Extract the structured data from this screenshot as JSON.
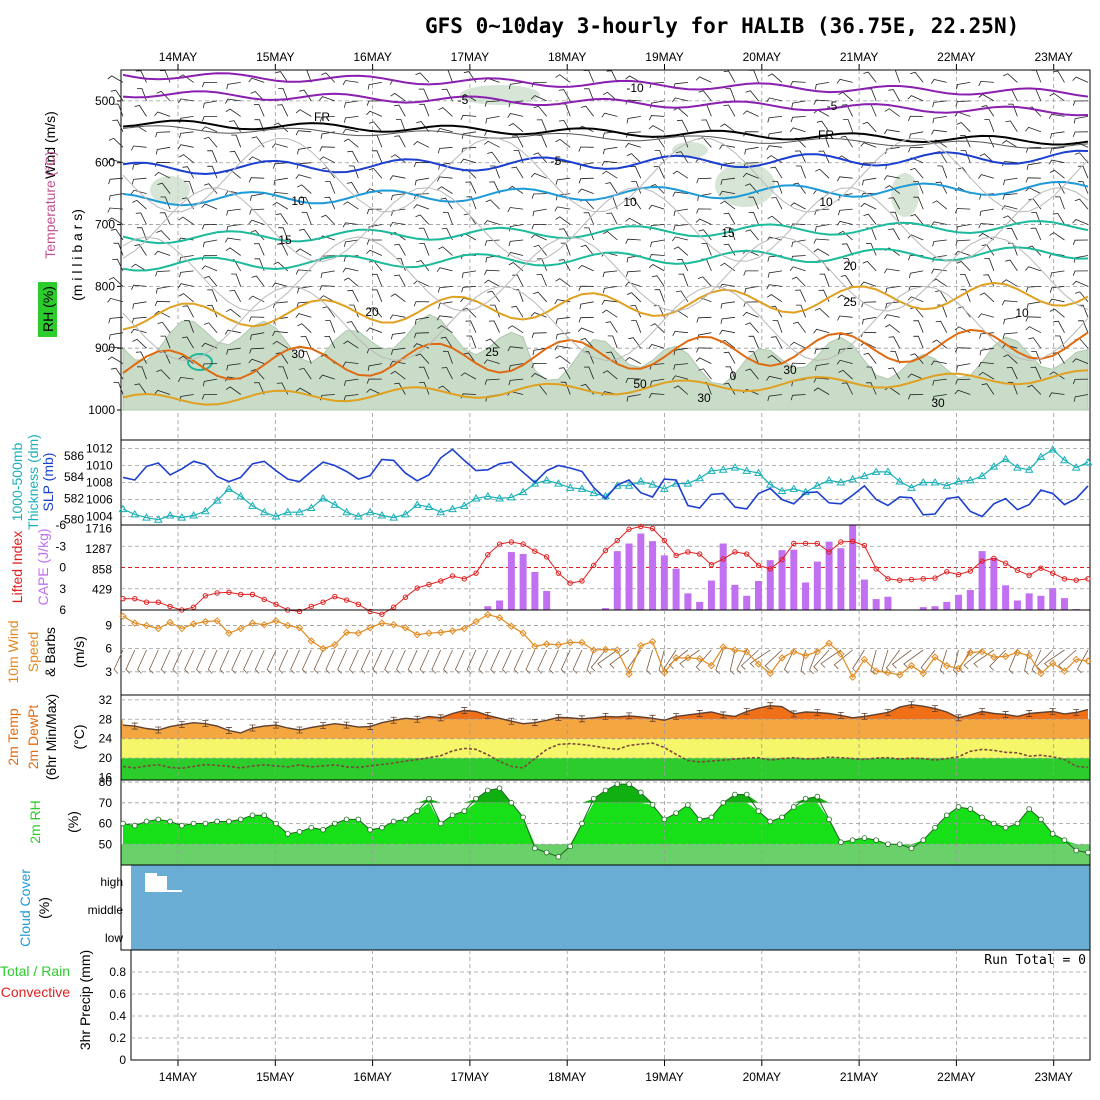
{
  "title": "GFS 0~10day 3-hourly for HALIB (36.75E, 22.25N)",
  "dates": [
    "14MAY",
    "15MAY",
    "16MAY",
    "17MAY",
    "18MAY",
    "19MAY",
    "20MAY",
    "21MAY",
    "22MAY",
    "23MAY"
  ],
  "colors": {
    "purple": "#8a1fb0",
    "blue": "#1c3fd0",
    "lightblue": "#1d9ad8",
    "teal": "#1cba9c",
    "gold": "#e0a020",
    "orange": "#e06a10",
    "rh": "#9cc4a0",
    "slp": "#1c3fd0",
    "thick": "#1ab0b8",
    "li": "#e02020",
    "cape": "#c070f0",
    "wind": "#e08a20",
    "green": "#2ccc2c",
    "cloud": "#6aaed6"
  },
  "panels": {
    "upper": {
      "ylabel_wind": "Wind (m/s)",
      "ylabel_temp": "Temperature (°C)",
      "ylabel_rh": "RH (%)",
      "ylabel_mb": "(m i l l i b a r s)",
      "yticks": [
        "500",
        "600",
        "700",
        "800",
        "900",
        "1000"
      ],
      "contour_labels": [
        "-10",
        "-5",
        "-5",
        "FR",
        "FR",
        "-5",
        "10",
        "10",
        "15",
        "15",
        "20",
        "20",
        "25",
        "25",
        "30",
        "0",
        "10",
        "30",
        "50",
        "30",
        "30",
        "10"
      ]
    },
    "slp": {
      "label_left": "1000-500mb",
      "label_left2": "Thickness (dm)",
      "label_right": "SLP (mb)",
      "left_ticks": [
        "580",
        "582",
        "584",
        "586"
      ],
      "right_ticks": [
        "1004",
        "1006",
        "1008",
        "1010",
        "1012"
      ]
    },
    "cape": {
      "label_left": "Lifted Index",
      "label_right": "CAPE (J/kg)",
      "left_ticks": [
        "-6",
        "-3",
        "0",
        "3",
        "6"
      ],
      "right_ticks": [
        "1716",
        "1287",
        "858",
        "429"
      ]
    },
    "wind10": {
      "label1": "10m Wind",
      "label2": "Speed",
      "label3": "& Barbs",
      "label4": "(m/s)",
      "ticks": [
        "9",
        "6",
        "3"
      ]
    },
    "temp2m": {
      "label1": "2m Temp",
      "label2": "2m DewPt",
      "label3": "(6hr Min/Max)",
      "label4": "(°C)",
      "ticks": [
        "32",
        "28",
        "24",
        "20",
        "16"
      ]
    },
    "rh2m": {
      "label1": "2m RH",
      "label2": "(%)",
      "ticks": [
        "80",
        "70",
        "60",
        "50"
      ]
    },
    "cloud": {
      "label1": "Cloud Cover",
      "label2": "(%)",
      "levels": [
        "high",
        "middle",
        "low"
      ]
    },
    "precip": {
      "label1": "3hr Precip (mm)",
      "label2": "Total / Rain",
      "label3": "Convective",
      "ticks": [
        "0.8",
        "0.6",
        "0.4",
        "0.2",
        "0"
      ],
      "run_total": "Run Total = 0"
    }
  },
  "chart_data": [
    {
      "type": "line",
      "panel": "SLP (mb)",
      "ylim": [
        1003,
        1013
      ],
      "x_step_hours": 3,
      "values": [
        1008.6,
        1008.3,
        1009.9,
        1010.3,
        1008.9,
        1009.6,
        1010.5,
        1010.1,
        1008.7,
        1008.1,
        1008.6,
        1010.2,
        1010.5,
        1009.4,
        1008.4,
        1008.1,
        1009.3,
        1010.4,
        1010.0,
        1009.3,
        1008.4,
        1008.8,
        1010.7,
        1010.6,
        1009.1,
        1008.2,
        1008.9,
        1010.9,
        1011.9,
        1010.6,
        1009.4,
        1009.5,
        1010.2,
        1010.4,
        1009.2,
        1008.0,
        1009.4,
        1010.0,
        1009.7,
        1009.3,
        1007.4,
        1006.1,
        1007.7,
        1008.3,
        1006.8,
        1006.3,
        1008.4,
        1008.3,
        1005.3,
        1005.0,
        1006.6,
        1006.7,
        1005.1,
        1004.9,
        1006.7,
        1007.3,
        1006.0,
        1005.5,
        1006.8,
        1006.9,
        1005.6,
        1005.5,
        1006.5,
        1007.6,
        1006.0,
        1005.3,
        1006.3,
        1006.2,
        1004.2,
        1004.3,
        1006.1,
        1006.3,
        1004.6,
        1004.0,
        1005.5,
        1006.1,
        1004.8,
        1005.4,
        1007.1,
        1006.7,
        1005.4,
        1006.1,
        1007.6
      ]
    },
    {
      "type": "line",
      "panel": "1000-500mb Thickness (dm)",
      "ylim": [
        579.5,
        587.5
      ],
      "x_step_hours": 3,
      "values": [
        581.0,
        580.5,
        580.2,
        580.0,
        580.4,
        580.2,
        580.4,
        580.8,
        581.8,
        582.9,
        582.2,
        581.3,
        580.7,
        580.3,
        580.7,
        580.7,
        581.1,
        582.0,
        581.4,
        580.7,
        580.3,
        580.7,
        580.4,
        580.2,
        580.5,
        581.4,
        581.2,
        580.7,
        581.0,
        581.3,
        582.0,
        582.2,
        582.0,
        582.1,
        582.6,
        583.4,
        583.7,
        583.4,
        583.0,
        582.9,
        582.5,
        582.2,
        583.2,
        583.2,
        583.6,
        583.3,
        582.9,
        583.4,
        583.4,
        583.9,
        584.6,
        584.7,
        584.9,
        584.6,
        584.4,
        583.3,
        582.7,
        582.9,
        582.6,
        583.2,
        583.7,
        583.5,
        583.8,
        584.1,
        584.5,
        584.5,
        583.6,
        583.0,
        583.5,
        583.5,
        583.2,
        583.6,
        583.7,
        584.1,
        585.0,
        585.7,
        584.9,
        584.7,
        585.9,
        586.6,
        585.6,
        584.9,
        585.4
      ]
    },
    {
      "type": "line",
      "panel": "Lifted Index",
      "ylim": [
        6,
        -6
      ],
      "x_step_hours": 3,
      "values": [
        4.4,
        4.4,
        4.9,
        4.9,
        5.5,
        6.0,
        5.6,
        4.0,
        3.6,
        3.5,
        3.8,
        3.8,
        4.5,
        5.2,
        6.0,
        6.2,
        5.5,
        4.9,
        4.1,
        4.6,
        5.2,
        6.2,
        6.6,
        5.6,
        4.2,
        2.9,
        2.4,
        1.9,
        1.2,
        1.6,
        0.8,
        -1.8,
        -3.3,
        -3.6,
        -3.3,
        -2.3,
        -1.5,
        0.8,
        2.2,
        1.9,
        -0.3,
        -2.4,
        -3.8,
        -5.4,
        -5.8,
        -5.5,
        -3.8,
        -1.7,
        -2.2,
        -1.9,
        -0.4,
        -1.2,
        -2.2,
        -1.9,
        -0.3,
        0.2,
        -1.1,
        -3.4,
        -3.4,
        -3.4,
        -2.2,
        -3.6,
        -3.7,
        -3.1,
        0.2,
        1.6,
        1.8,
        1.7,
        1.6,
        1.5,
        0.6,
        1.0,
        0.5,
        -0.9,
        -1.3,
        -0.6,
        0.4,
        1.1,
        0.1,
        0.8,
        1.6,
        1.8,
        1.6
      ]
    },
    {
      "type": "bar",
      "panel": "CAPE (J/kg)",
      "ylim": [
        0,
        1716
      ],
      "x_step_hours": 3,
      "values": [
        0,
        0,
        0,
        0,
        0,
        0,
        0,
        0,
        0,
        0,
        0,
        0,
        0,
        0,
        0,
        0,
        0,
        0,
        0,
        0,
        0,
        0,
        0,
        0,
        0,
        0,
        0,
        0,
        0,
        0,
        0,
        80,
        200,
        1220,
        1180,
        800,
        400,
        0,
        0,
        0,
        0,
        40,
        1240,
        1400,
        1610,
        1450,
        1150,
        870,
        350,
        170,
        620,
        1400,
        530,
        300,
        610,
        1050,
        1260,
        1270,
        580,
        1020,
        1440,
        1300,
        1780,
        640,
        230,
        280,
        0,
        0,
        60,
        80,
        170,
        320,
        420,
        1240,
        1100,
        520,
        200,
        350,
        300,
        460,
        250,
        20,
        0
      ]
    },
    {
      "type": "line",
      "panel": "10m Wind Speed (m/s)",
      "ylim": [
        0,
        11
      ],
      "x_step_hours": 3,
      "values": [
        10.2,
        9.3,
        9.0,
        8.6,
        9.4,
        8.6,
        9.2,
        9.5,
        9.6,
        8.0,
        8.6,
        9.3,
        9.1,
        9.6,
        9.0,
        8.7,
        7.0,
        6.0,
        6.5,
        8.1,
        8.0,
        8.7,
        9.3,
        9.1,
        8.7,
        7.8,
        8.0,
        8.1,
        8.3,
        8.6,
        9.5,
        10.4,
        10.0,
        8.9,
        8.0,
        6.3,
        6.6,
        6.5,
        6.8,
        6.8,
        5.8,
        5.9,
        5.8,
        2.7,
        6.4,
        6.9,
        2.9,
        4.8,
        4.8,
        4.7,
        3.8,
        6.2,
        5.8,
        5.6,
        4.0,
        2.8,
        4.8,
        5.6,
        5.1,
        5.6,
        6.7,
        5.3,
        2.3,
        4.6,
        3.1,
        2.9,
        2.6,
        3.8,
        2.8,
        4.9,
        3.8,
        3.4,
        5.5,
        5.6,
        4.9,
        5.0,
        5.5,
        5.1,
        2.8,
        4.1,
        3.1,
        4.6,
        4.4
      ]
    },
    {
      "type": "line",
      "panel": "2m Temp (°C)",
      "ylim": [
        15.5,
        33
      ],
      "x_step_hours": 3,
      "values": [
        26.8,
        26.6,
        26.1,
        25.8,
        26.5,
        26.9,
        27.3,
        27.1,
        26.6,
        25.7,
        25.2,
        26.2,
        26.6,
        26.8,
        26.2,
        25.8,
        26.3,
        26.7,
        27.1,
        26.8,
        26.4,
        26.5,
        27.3,
        27.8,
        28.2,
        28.0,
        28.6,
        28.3,
        29.2,
        29.8,
        29.6,
        28.8,
        28.2,
        27.6,
        27.1,
        27.3,
        27.8,
        28.4,
        28.3,
        28.1,
        28.3,
        28.6,
        28.5,
        28.7,
        28.5,
        28.2,
        27.8,
        28.6,
        28.9,
        29.2,
        29.5,
        28.9,
        28.6,
        29.6,
        30.3,
        30.8,
        30.6,
        29.1,
        29.5,
        29.4,
        29.2,
        28.8,
        28.3,
        28.6,
        29.0,
        29.4,
        30.5,
        31.0,
        30.7,
        30.2,
        29.5,
        28.3,
        28.9,
        29.6,
        29.2,
        29.0,
        28.6,
        29.2,
        29.4,
        29.6,
        29.1,
        29.4,
        30.0
      ]
    },
    {
      "type": "line",
      "panel": "2m DewPt (°C)",
      "ylim": [
        15.5,
        33
      ],
      "x_step_hours": 3,
      "values": [
        18.3,
        18.0,
        18.4,
        18.6,
        18.1,
        17.9,
        18.3,
        18.7,
        18.5,
        18.3,
        18.0,
        18.4,
        18.6,
        18.4,
        18.2,
        18.6,
        18.2,
        18.4,
        18.6,
        18.2,
        18.1,
        18.4,
        18.7,
        19.0,
        19.4,
        19.7,
        20.1,
        20.5,
        21.5,
        22.0,
        21.8,
        20.7,
        19.3,
        18.3,
        18.0,
        19.9,
        21.8,
        22.8,
        23.0,
        22.8,
        22.5,
        22.1,
        21.8,
        22.6,
        22.9,
        23.1,
        22.2,
        20.8,
        19.5,
        19.2,
        19.4,
        19.6,
        19.8,
        20.0,
        20.1,
        19.6,
        19.9,
        20.1,
        19.8,
        19.9,
        20.2,
        20.1,
        19.9,
        19.7,
        20.0,
        20.1,
        19.8,
        20.0,
        19.9,
        19.6,
        19.9,
        20.3,
        21.4,
        21.8,
        21.6,
        21.2,
        21.1,
        20.4,
        20.6,
        20.3,
        19.7,
        18.3,
        18.1
      ]
    },
    {
      "type": "area",
      "panel": "2m RH (%)",
      "ylim": [
        40,
        81
      ],
      "x_step_hours": 3,
      "values": [
        60,
        59,
        61,
        62,
        61,
        59,
        60,
        60,
        61,
        61,
        62,
        64,
        64,
        60,
        55,
        56,
        58,
        57,
        60,
        62,
        62,
        57,
        58,
        61,
        62,
        66,
        72,
        60,
        64,
        66,
        72,
        76,
        77,
        70,
        63,
        48,
        46,
        44,
        49,
        60,
        72,
        76,
        79,
        79,
        75,
        69,
        62,
        65,
        69,
        62,
        63,
        70,
        74,
        74,
        66,
        61,
        63,
        68,
        72,
        73,
        62,
        51,
        52,
        53,
        52,
        50,
        50,
        48,
        52,
        58,
        64,
        68,
        67,
        63,
        60,
        58,
        60,
        67,
        62,
        55,
        52,
        47,
        46
      ]
    },
    {
      "type": "bar",
      "panel": "3hr Precip (mm)",
      "ylim": [
        0,
        1
      ],
      "x_step_hours": 3,
      "values": [
        0,
        0,
        0,
        0,
        0,
        0,
        0,
        0,
        0,
        0
      ]
    }
  ]
}
